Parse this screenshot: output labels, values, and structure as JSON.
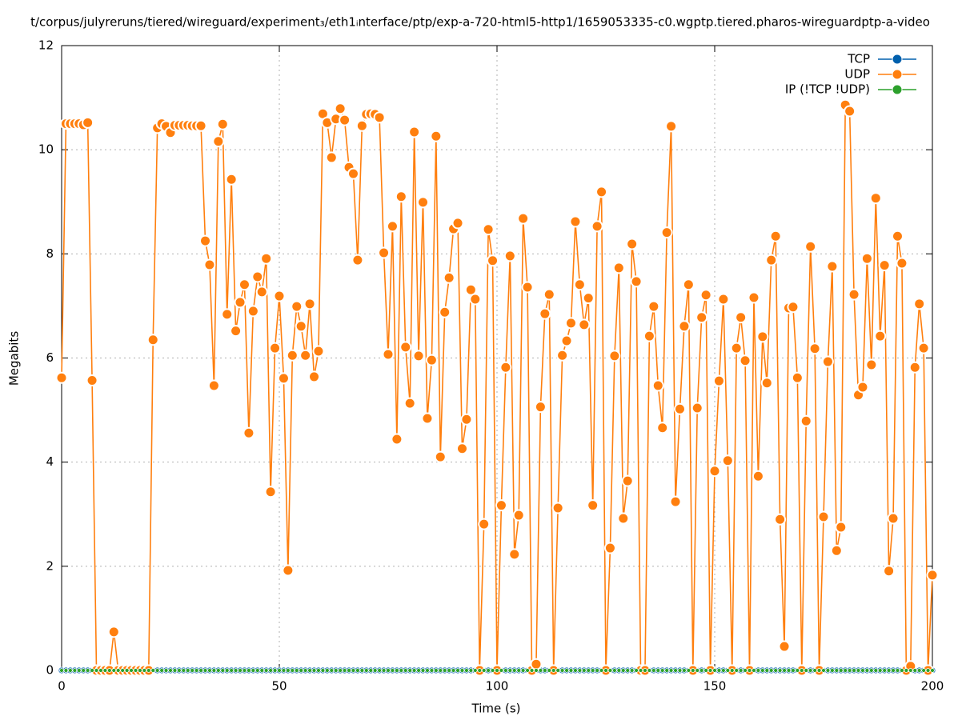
{
  "chart_data": {
    "type": "line",
    "title": "t/corpus/julyreruns/tiered/wireguard/experiment₃/eth1ᵢnterface/ptp/exp-a-720-html5-http1/1659053335-c0.wgptp.tiered.pharos-wireguardptp-a-video",
    "xlabel": "Time (s)",
    "ylabel": "Megabits",
    "xlim": [
      0,
      200
    ],
    "ylim": [
      0,
      12
    ],
    "xticks": [
      0,
      50,
      100,
      150,
      200
    ],
    "yticks": [
      0,
      2,
      4,
      6,
      8,
      10,
      12
    ],
    "grid": true,
    "legend": "upper right",
    "x": [
      0,
      1,
      2,
      3,
      4,
      5,
      6,
      7,
      8,
      9,
      10,
      11,
      12,
      13,
      14,
      15,
      16,
      17,
      18,
      19,
      20,
      21,
      22,
      23,
      24,
      25,
      26,
      27,
      28,
      29,
      30,
      31,
      32,
      33,
      34,
      35,
      36,
      37,
      38,
      39,
      40,
      41,
      42,
      43,
      44,
      45,
      46,
      47,
      48,
      49,
      50,
      51,
      52,
      53,
      54,
      55,
      56,
      57,
      58,
      59,
      60,
      61,
      62,
      63,
      64,
      65,
      66,
      67,
      68,
      69,
      70,
      71,
      72,
      73,
      74,
      75,
      76,
      77,
      78,
      79,
      80,
      81,
      82,
      83,
      84,
      85,
      86,
      87,
      88,
      89,
      90,
      91,
      92,
      93,
      94,
      95,
      96,
      97,
      98,
      99,
      100,
      101,
      102,
      103,
      104,
      105,
      106,
      107,
      108,
      109,
      110,
      111,
      112,
      113,
      114,
      115,
      116,
      117,
      118,
      119,
      120,
      121,
      122,
      123,
      124,
      125,
      126,
      127,
      128,
      129,
      130,
      131,
      132,
      133,
      134,
      135,
      136,
      137,
      138,
      139,
      140,
      141,
      142,
      143,
      144,
      145,
      146,
      147,
      148,
      149,
      150,
      151,
      152,
      153,
      154,
      155,
      156,
      157,
      158,
      159,
      160,
      161,
      162,
      163,
      164,
      165,
      166,
      167,
      168,
      169,
      170,
      171,
      172,
      173,
      174,
      175,
      176,
      177,
      178,
      179,
      180,
      181,
      182,
      183,
      184,
      185,
      186,
      187,
      188,
      189,
      190,
      191,
      192,
      193,
      194,
      195,
      196,
      197,
      198,
      199,
      200
    ],
    "series": [
      {
        "name": "TCP",
        "color": "#0060ad",
        "values": [
          0,
          0,
          0,
          0,
          0,
          0,
          0,
          0,
          0,
          0,
          0,
          0,
          0,
          0,
          0,
          0,
          0,
          0,
          0,
          0,
          0,
          0,
          0,
          0,
          0,
          0,
          0,
          0,
          0,
          0,
          0,
          0,
          0,
          0,
          0,
          0,
          0,
          0,
          0,
          0,
          0,
          0,
          0,
          0,
          0,
          0,
          0,
          0,
          0,
          0,
          0,
          0,
          0,
          0,
          0,
          0,
          0,
          0,
          0,
          0,
          0,
          0,
          0,
          0,
          0,
          0,
          0,
          0,
          0,
          0,
          0,
          0,
          0,
          0,
          0,
          0,
          0,
          0,
          0,
          0,
          0,
          0,
          0,
          0,
          0,
          0,
          0,
          0,
          0,
          0,
          0,
          0,
          0,
          0,
          0,
          0,
          0,
          0,
          0,
          0,
          0,
          0,
          0,
          0,
          0,
          0,
          0,
          0,
          0,
          0,
          0,
          0,
          0,
          0,
          0,
          0,
          0,
          0,
          0,
          0,
          0,
          0,
          0,
          0,
          0,
          0,
          0,
          0,
          0,
          0,
          0,
          0,
          0,
          0,
          0,
          0,
          0,
          0,
          0,
          0,
          0,
          0,
          0,
          0,
          0,
          0,
          0,
          0,
          0,
          0,
          0,
          0,
          0,
          0,
          0,
          0,
          0,
          0,
          0,
          0,
          0,
          0,
          0,
          0,
          0,
          0,
          0,
          0,
          0,
          0,
          0,
          0,
          0,
          0,
          0,
          0,
          0,
          0,
          0,
          0,
          0,
          0,
          0,
          0,
          0,
          0,
          0,
          0,
          0,
          0,
          0,
          0,
          0,
          0,
          0,
          0,
          0,
          0,
          0,
          0,
          0
        ]
      },
      {
        "name": "UDP",
        "color": "#ff7f0e",
        "values": [
          5.62,
          10.5,
          10.5,
          10.5,
          10.5,
          10.48,
          10.52,
          5.57,
          0,
          0,
          0,
          0,
          0.74,
          0,
          0,
          0,
          0,
          0,
          0,
          0,
          0,
          6.35,
          10.42,
          10.5,
          10.45,
          10.33,
          10.47,
          10.47,
          10.47,
          10.47,
          10.46,
          10.46,
          10.46,
          8.25,
          7.79,
          5.47,
          10.16,
          10.49,
          6.84,
          9.43,
          6.52,
          7.07,
          7.41,
          4.56,
          6.9,
          7.56,
          7.27,
          7.91,
          3.43,
          6.19,
          7.19,
          5.61,
          1.92,
          6.05,
          6.99,
          6.61,
          6.05,
          7.04,
          5.64,
          6.13,
          10.69,
          10.52,
          9.85,
          10.59,
          10.79,
          10.57,
          9.66,
          9.54,
          7.88,
          10.46,
          10.68,
          10.69,
          10.68,
          10.62,
          8.02,
          6.07,
          8.53,
          4.44,
          9.1,
          6.21,
          5.13,
          10.34,
          6.04,
          8.99,
          4.84,
          5.96,
          10.26,
          4.1,
          6.88,
          7.54,
          8.48,
          8.59,
          4.26,
          4.82,
          7.31,
          7.13,
          0,
          2.81,
          8.47,
          7.87,
          0,
          3.17,
          5.82,
          7.96,
          2.23,
          2.98,
          8.68,
          7.36,
          0,
          0.12,
          5.06,
          6.85,
          7.22,
          0,
          3.12,
          6.05,
          6.33,
          6.67,
          8.62,
          7.41,
          6.64,
          7.15,
          3.17,
          8.53,
          9.19,
          0,
          2.35,
          6.04,
          7.73,
          2.92,
          3.64,
          8.19,
          7.47,
          0,
          0,
          6.42,
          6.99,
          5.47,
          4.66,
          8.41,
          10.45,
          3.24,
          5.02,
          6.61,
          7.41,
          0,
          5.04,
          6.78,
          7.21,
          0,
          3.83,
          5.56,
          7.13,
          4.03,
          0,
          6.19,
          6.78,
          5.95,
          0,
          7.16,
          3.73,
          6.41,
          5.52,
          7.88,
          8.34,
          2.9,
          0.46,
          6.96,
          6.98,
          5.62,
          0,
          4.79,
          8.14,
          6.18,
          0,
          2.95,
          5.93,
          7.76,
          2.3,
          2.75,
          10.86,
          10.74,
          7.22,
          5.29,
          5.44,
          7.91,
          5.87,
          9.07,
          6.42,
          7.78,
          1.91,
          2.92,
          8.34,
          7.82,
          0,
          0.08,
          5.82,
          7.04,
          6.19,
          0,
          1.83
        ]
      },
      {
        "name": "IP (!TCP  !UDP)",
        "color": "#2ca02c",
        "values": [
          0,
          0,
          0,
          0,
          0,
          0,
          0,
          0,
          0,
          0,
          0,
          0,
          0,
          0,
          0,
          0,
          0,
          0,
          0,
          0,
          0,
          0,
          0,
          0,
          0,
          0,
          0,
          0,
          0,
          0,
          0,
          0,
          0,
          0,
          0,
          0,
          0,
          0,
          0,
          0,
          0,
          0,
          0,
          0,
          0,
          0,
          0,
          0,
          0,
          0,
          0,
          0,
          0,
          0,
          0,
          0,
          0,
          0,
          0,
          0,
          0,
          0,
          0,
          0,
          0,
          0,
          0,
          0,
          0,
          0,
          0,
          0,
          0,
          0,
          0,
          0,
          0,
          0,
          0,
          0,
          0,
          0,
          0,
          0,
          0,
          0,
          0,
          0,
          0,
          0,
          0,
          0,
          0,
          0,
          0,
          0,
          0,
          0,
          0,
          0,
          0,
          0,
          0,
          0,
          0,
          0,
          0,
          0,
          0,
          0,
          0,
          0,
          0,
          0,
          0,
          0,
          0,
          0,
          0,
          0,
          0,
          0,
          0,
          0,
          0,
          0,
          0,
          0,
          0,
          0,
          0,
          0,
          0,
          0,
          0,
          0,
          0,
          0,
          0,
          0,
          0,
          0,
          0,
          0,
          0,
          0,
          0,
          0,
          0,
          0,
          0,
          0,
          0,
          0,
          0,
          0,
          0,
          0,
          0,
          0,
          0,
          0,
          0,
          0,
          0,
          0,
          0,
          0,
          0,
          0,
          0,
          0,
          0,
          0,
          0,
          0,
          0,
          0,
          0,
          0,
          0,
          0,
          0,
          0,
          0,
          0,
          0,
          0,
          0,
          0,
          0,
          0,
          0,
          0,
          0,
          0,
          0,
          0,
          0,
          0,
          0
        ]
      }
    ]
  }
}
